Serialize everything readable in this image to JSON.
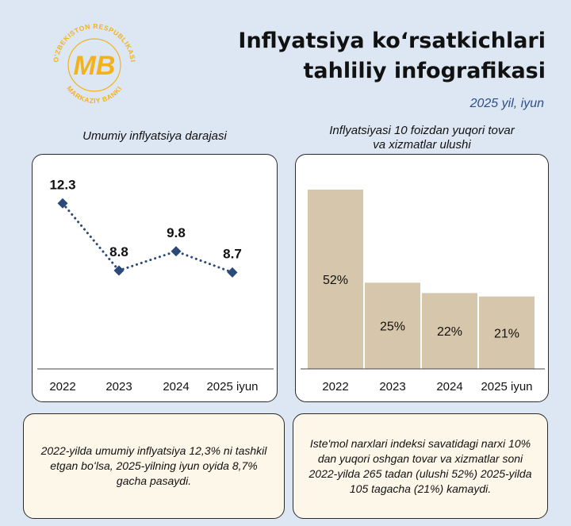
{
  "header": {
    "title_line1": "Inflyatsiya koʻrsatkichlari",
    "title_line2": "tahliliy infografikasi",
    "date": "2025 yil, iyun"
  },
  "logo": {
    "text_top": "O'ZBEKISTON RESPUBLIKASI",
    "text_bottom": "MARKAZIY BANKI",
    "monogram": "MB",
    "color": "#f2b21b"
  },
  "left_panel": {
    "title": "Umumiy inflyatsiya darajasi",
    "note": "2022-yilda umumiy inflyatsiya 12,3% ni tashkil etgan boʻlsa, 2025-yilning iyun oyida 8,7% gacha pasaydi."
  },
  "right_panel": {
    "title_line1": "Inflyatsiyasi 10 foizdan yuqori tovar",
    "title_line2": "va xizmatlar ulushi",
    "note": "Iste'mol narxlari indeksi savatidagi narxi 10% dan yuqori oshgan tovar va xizmatlar soni 2022-yilda 265 tadan (ulushi 52%) 2025-yilda 105 tagacha (21%) kamaydi."
  },
  "colors": {
    "line": "#2c4a78",
    "bar": "#d6c6ab",
    "background": "#dde7f3",
    "note_background": "#fdf7e9"
  },
  "chart_data": [
    {
      "type": "line",
      "categories": [
        "2022",
        "2023",
        "2024",
        "2025 iyun"
      ],
      "values": [
        12.3,
        8.8,
        9.8,
        8.7
      ],
      "labels": [
        "12.3",
        "8.8",
        "9.8",
        "8.7"
      ],
      "title": "Umumiy inflyatsiya darajasi",
      "line_style": "dotted",
      "marker": "diamond",
      "ylim": [
        4.5,
        13.8
      ],
      "grid": false
    },
    {
      "type": "bar",
      "categories": [
        "2022",
        "2023",
        "2024",
        "2025 iyun"
      ],
      "values": [
        52,
        25,
        22,
        21
      ],
      "labels": [
        "52%",
        "25%",
        "22%",
        "21%"
      ],
      "title": "Inflyatsiyasi 10 foizdan yuqori tovar va xizmatlar ulushi",
      "ylim": [
        0,
        60
      ],
      "grid": false
    }
  ]
}
